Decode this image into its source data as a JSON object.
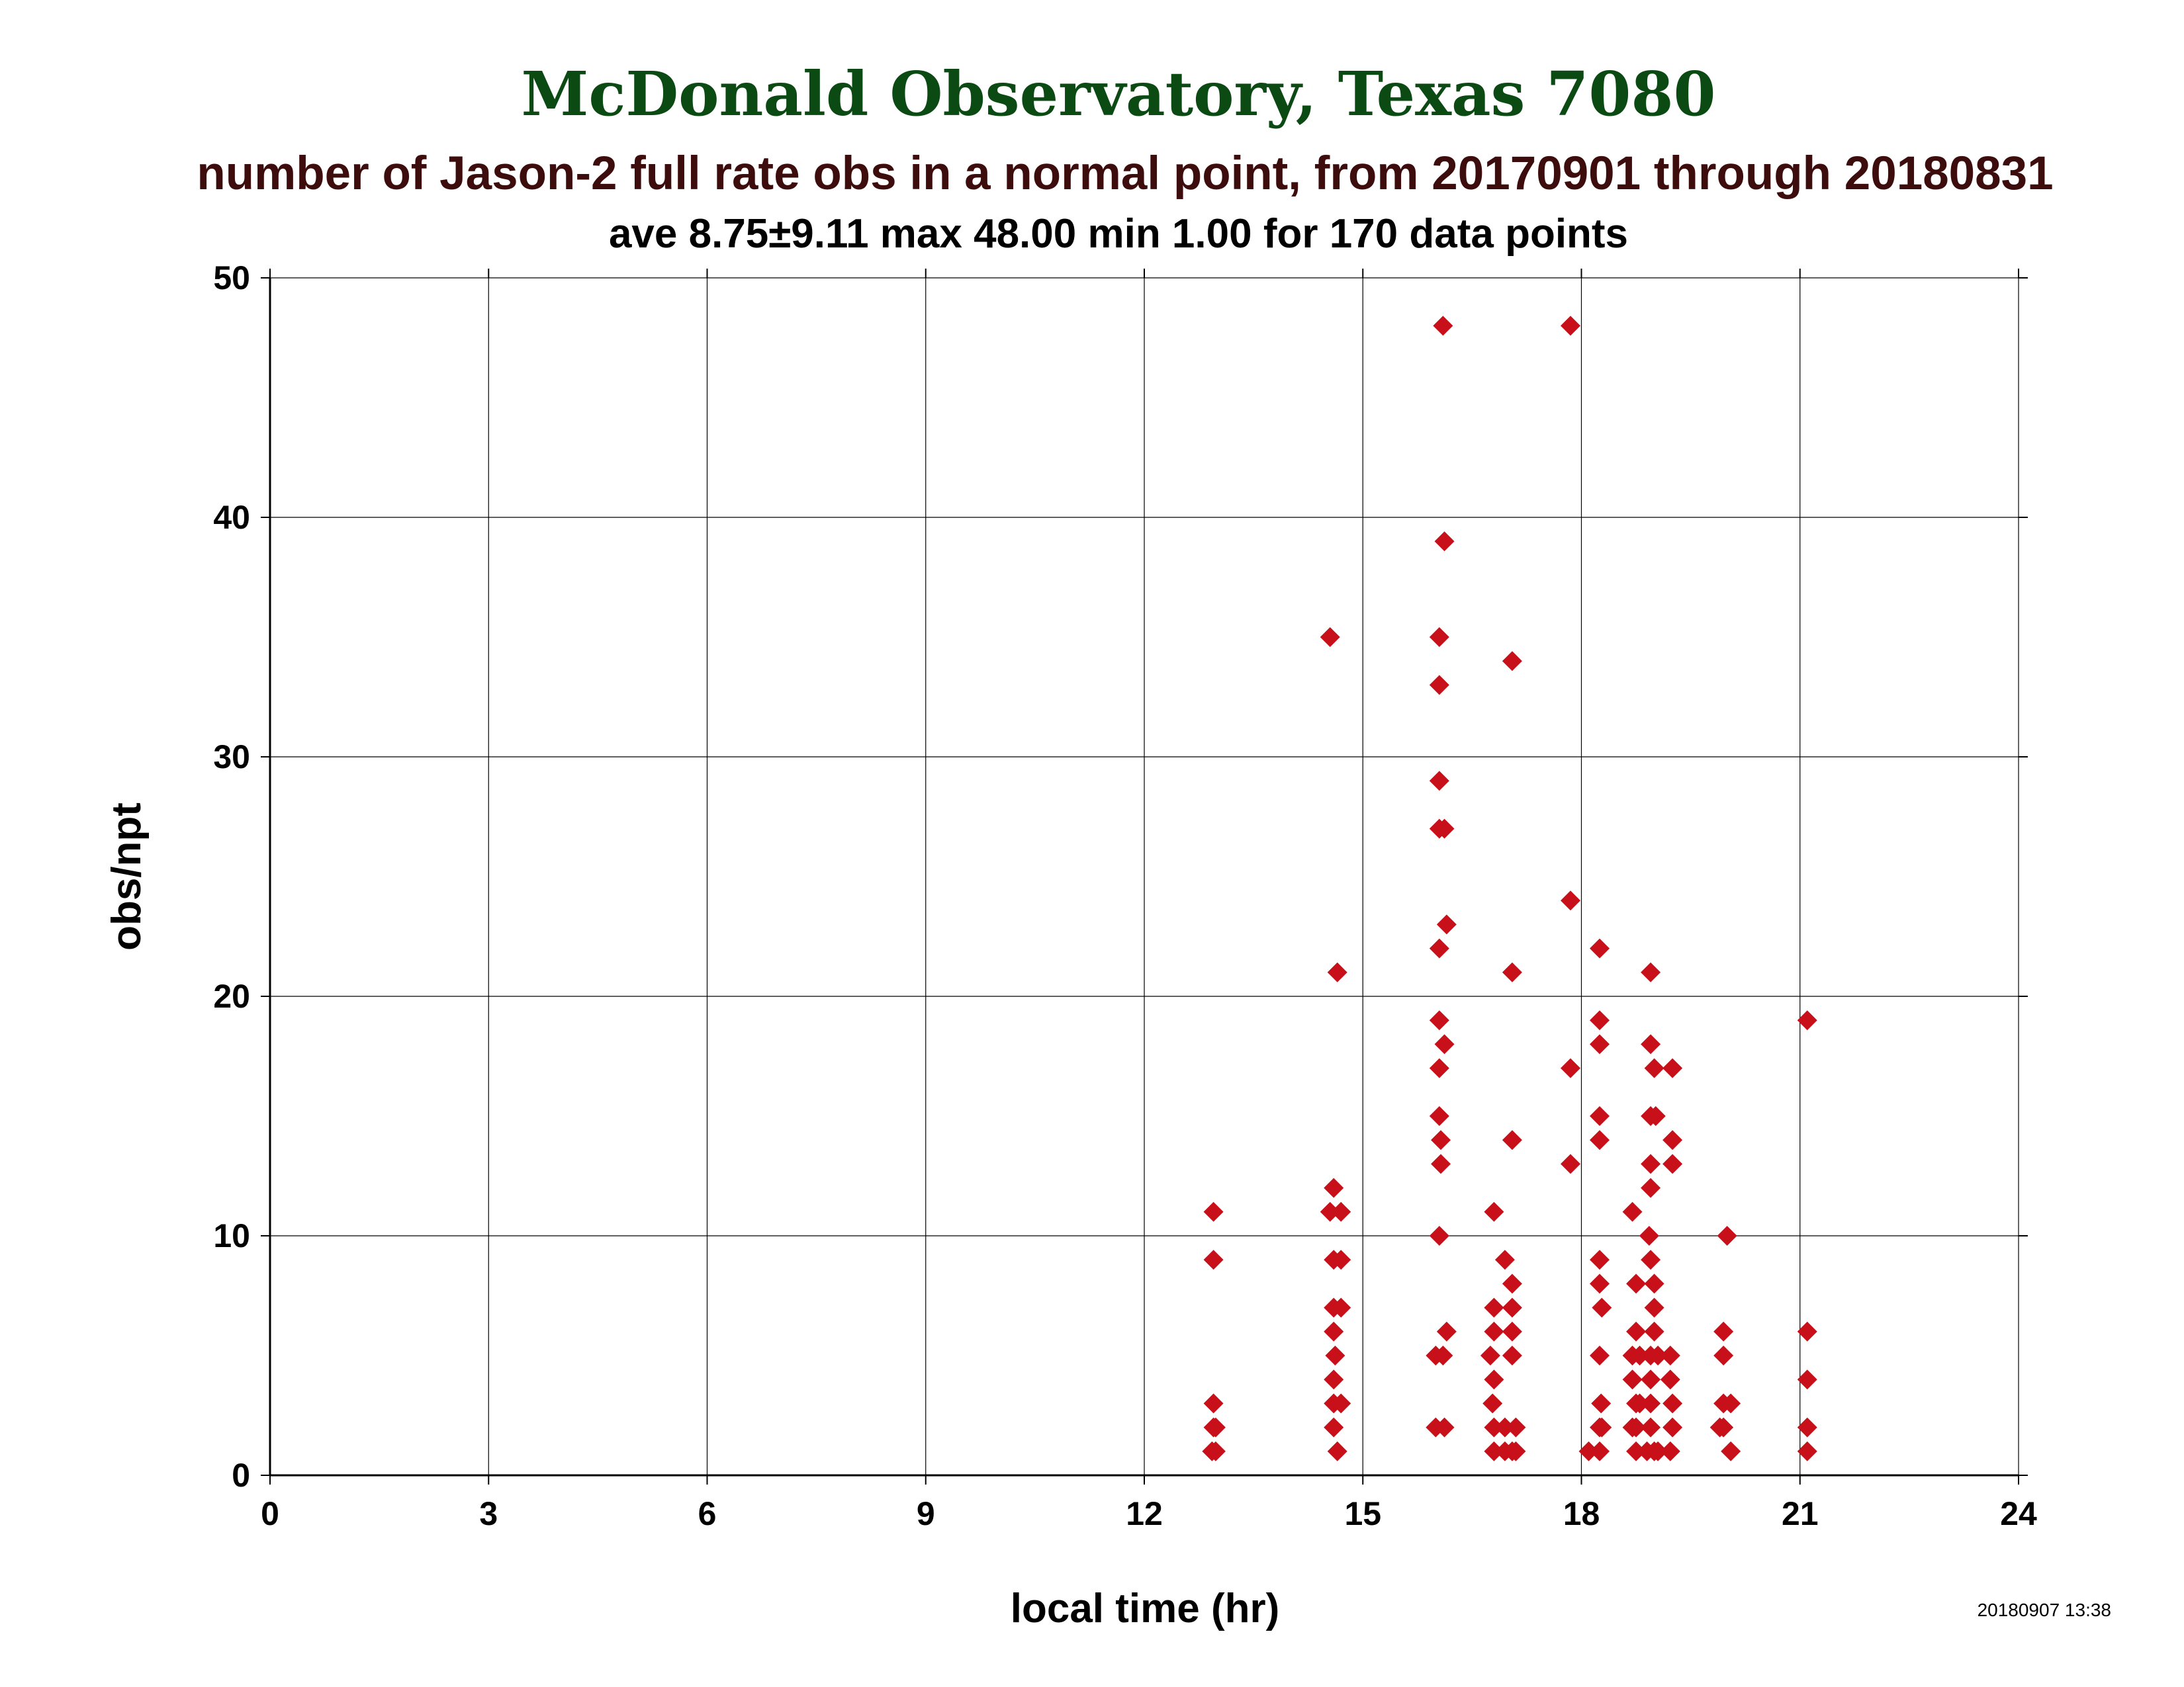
{
  "header": {
    "title": "McDonald Observatory, Texas 7080",
    "subtitle": "number of Jason-2 full rate obs in a normal point, from 20170901 through 20180831",
    "stats": "ave 8.75±9.11 max 48.00 min 1.00 for 170 data points"
  },
  "footer": {
    "timestamp": "20180907 13:38"
  },
  "colors": {
    "marker": "#c8101a",
    "title": "#0b4a12",
    "subtitle": "#3d0c0c",
    "grid": "#000000"
  },
  "chart_data": {
    "type": "scatter",
    "title": "McDonald Observatory, Texas 7080",
    "subtitle": "number of Jason-2 full rate obs in a normal point, from 20170901 through 20180831",
    "xlabel": "local time (hr)",
    "ylabel": "obs/npt",
    "xlim": [
      0,
      24
    ],
    "ylim": [
      0,
      50
    ],
    "xticks": [
      0,
      3,
      6,
      9,
      12,
      15,
      18,
      21,
      24
    ],
    "yticks": [
      0,
      10,
      20,
      30,
      40,
      50
    ],
    "grid": true,
    "marker": "diamond",
    "points": [
      [
        12.95,
        11
      ],
      [
        12.95,
        9
      ],
      [
        12.95,
        3
      ],
      [
        12.95,
        2
      ],
      [
        12.98,
        2
      ],
      [
        12.93,
        1
      ],
      [
        12.98,
        1
      ],
      [
        14.55,
        35
      ],
      [
        14.6,
        12
      ],
      [
        14.55,
        11
      ],
      [
        14.7,
        11
      ],
      [
        14.6,
        9
      ],
      [
        14.7,
        9
      ],
      [
        14.6,
        7
      ],
      [
        14.7,
        7
      ],
      [
        14.65,
        21
      ],
      [
        14.6,
        6
      ],
      [
        14.62,
        5
      ],
      [
        14.6,
        4
      ],
      [
        14.6,
        3
      ],
      [
        14.7,
        3
      ],
      [
        14.6,
        2
      ],
      [
        14.65,
        1
      ],
      [
        16.1,
        48
      ],
      [
        16.12,
        39
      ],
      [
        16.05,
        35
      ],
      [
        16.05,
        33
      ],
      [
        16.05,
        29
      ],
      [
        16.05,
        27
      ],
      [
        16.12,
        27
      ],
      [
        16.15,
        23
      ],
      [
        16.05,
        22
      ],
      [
        16.05,
        19
      ],
      [
        16.12,
        18
      ],
      [
        16.05,
        17
      ],
      [
        16.05,
        15
      ],
      [
        16.07,
        14
      ],
      [
        16.07,
        13
      ],
      [
        16.05,
        10
      ],
      [
        16.15,
        6
      ],
      [
        16.0,
        5
      ],
      [
        16.1,
        5
      ],
      [
        16.0,
        2
      ],
      [
        16.12,
        2
      ],
      [
        17.05,
        34
      ],
      [
        17.05,
        21
      ],
      [
        17.05,
        14
      ],
      [
        16.8,
        11
      ],
      [
        16.95,
        9
      ],
      [
        17.05,
        8
      ],
      [
        16.8,
        7
      ],
      [
        17.05,
        7
      ],
      [
        16.8,
        6
      ],
      [
        17.05,
        6
      ],
      [
        16.75,
        5
      ],
      [
        17.05,
        5
      ],
      [
        16.8,
        4
      ],
      [
        16.78,
        3
      ],
      [
        16.8,
        2
      ],
      [
        16.95,
        2
      ],
      [
        17.1,
        2
      ],
      [
        16.8,
        1
      ],
      [
        16.95,
        1
      ],
      [
        17.05,
        1
      ],
      [
        17.1,
        1
      ],
      [
        17.85,
        48
      ],
      [
        17.85,
        24
      ],
      [
        17.85,
        17
      ],
      [
        17.85,
        13
      ],
      [
        18.25,
        22
      ],
      [
        18.25,
        19
      ],
      [
        18.25,
        18
      ],
      [
        18.25,
        15
      ],
      [
        18.25,
        14
      ],
      [
        18.25,
        9
      ],
      [
        18.25,
        8
      ],
      [
        18.28,
        7
      ],
      [
        18.25,
        5
      ],
      [
        18.27,
        3
      ],
      [
        18.25,
        2
      ],
      [
        18.28,
        2
      ],
      [
        18.1,
        1
      ],
      [
        18.25,
        1
      ],
      [
        18.95,
        21
      ],
      [
        18.95,
        18
      ],
      [
        19.0,
        17
      ],
      [
        19.25,
        17
      ],
      [
        18.95,
        15
      ],
      [
        19.02,
        15
      ],
      [
        19.25,
        14
      ],
      [
        18.95,
        13
      ],
      [
        19.25,
        13
      ],
      [
        18.95,
        12
      ],
      [
        18.7,
        11
      ],
      [
        18.93,
        10
      ],
      [
        18.95,
        9
      ],
      [
        18.75,
        8
      ],
      [
        19.0,
        8
      ],
      [
        19.0,
        7
      ],
      [
        18.75,
        6
      ],
      [
        19.0,
        6
      ],
      [
        18.7,
        5
      ],
      [
        18.8,
        5
      ],
      [
        18.95,
        5
      ],
      [
        19.05,
        5
      ],
      [
        19.22,
        5
      ],
      [
        18.7,
        4
      ],
      [
        18.95,
        4
      ],
      [
        19.22,
        4
      ],
      [
        18.75,
        3
      ],
      [
        18.8,
        3
      ],
      [
        18.95,
        3
      ],
      [
        19.25,
        3
      ],
      [
        18.7,
        2
      ],
      [
        18.75,
        2
      ],
      [
        18.95,
        2
      ],
      [
        19.25,
        2
      ],
      [
        18.75,
        1
      ],
      [
        18.9,
        1
      ],
      [
        19.0,
        1
      ],
      [
        19.05,
        1
      ],
      [
        19.22,
        1
      ],
      [
        20.0,
        10
      ],
      [
        19.95,
        6
      ],
      [
        19.95,
        5
      ],
      [
        19.95,
        3
      ],
      [
        20.05,
        3
      ],
      [
        19.9,
        2
      ],
      [
        19.95,
        2
      ],
      [
        20.05,
        1
      ],
      [
        21.1,
        19
      ],
      [
        21.1,
        6
      ],
      [
        21.1,
        4
      ],
      [
        21.1,
        2
      ],
      [
        21.1,
        1
      ]
    ]
  }
}
